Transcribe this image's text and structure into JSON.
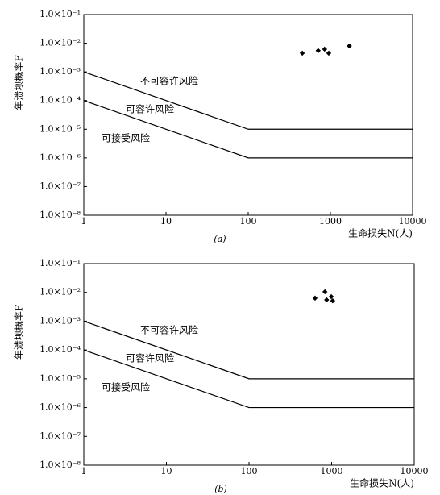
{
  "chart_data": [
    {
      "type": "scatter",
      "xscale": "log",
      "yscale": "log",
      "x_label": "生命损失N(人)",
      "y_label": "年溃坝概率F",
      "caption": "(a)",
      "xlim": [
        1,
        10000
      ],
      "ylim": [
        1e-08,
        0.1
      ],
      "xticks": [
        1,
        10,
        100,
        1000,
        10000
      ],
      "yticks": [
        {
          "value": 1e-08,
          "label": "1.0×10⁻⁸"
        },
        {
          "value": 1e-07,
          "label": "1.0×10⁻⁷"
        },
        {
          "value": 1e-06,
          "label": "1.0×10⁻⁶"
        },
        {
          "value": 1e-05,
          "label": "1.0×10⁻⁵"
        },
        {
          "value": 0.0001,
          "label": "1.0×10⁻⁴"
        },
        {
          "value": 0.001,
          "label": "1.0×10⁻³"
        },
        {
          "value": 0.01,
          "label": "1.0×10⁻²"
        },
        {
          "value": 0.1,
          "label": "1.0×10⁻¹"
        }
      ],
      "annotations": [
        "不可容许风险",
        "可容许风险",
        "可接受风险"
      ],
      "series": [
        {
          "type": "line",
          "color": "#000000",
          "x": [
            1,
            100,
            10000
          ],
          "values": [
            0.001,
            1e-05,
            1e-05
          ]
        },
        {
          "type": "line",
          "color": "#000000",
          "x": [
            1,
            100,
            10000
          ],
          "values": [
            0.0001,
            1e-06,
            1e-06
          ]
        },
        {
          "type": "scatter",
          "color": "#000000",
          "x": [
            455,
            710,
            850,
            955,
            1700
          ],
          "values": [
            0.0045,
            0.0055,
            0.0062,
            0.0045,
            0.008
          ]
        }
      ]
    },
    {
      "type": "scatter",
      "xscale": "log",
      "yscale": "log",
      "x_label": "生命损失N(人)",
      "y_label": "年溃坝概率F",
      "caption": "(b)",
      "xlim": [
        1,
        10000
      ],
      "ylim": [
        1e-08,
        0.1
      ],
      "xticks": [
        1,
        10,
        100,
        1000,
        10000
      ],
      "yticks": [
        {
          "value": 1e-08,
          "label": "1.0×10⁻⁸"
        },
        {
          "value": 1e-07,
          "label": "1.0×10⁻⁷"
        },
        {
          "value": 1e-06,
          "label": "1.0×10⁻⁶"
        },
        {
          "value": 1e-05,
          "label": "1.0×10⁻⁵"
        },
        {
          "value": 0.0001,
          "label": "1.0×10⁻⁴"
        },
        {
          "value": 0.001,
          "label": "1.0×10⁻³"
        },
        {
          "value": 0.01,
          "label": "1.0×10⁻²"
        },
        {
          "value": 0.1,
          "label": "1.0×10⁻¹"
        }
      ],
      "annotations": [
        "不可容许风险",
        "可容许风险",
        "可接受风险"
      ],
      "series": [
        {
          "type": "line",
          "color": "#000000",
          "x": [
            1,
            100,
            10000
          ],
          "values": [
            0.001,
            1e-05,
            1e-05
          ]
        },
        {
          "type": "line",
          "color": "#000000",
          "x": [
            1,
            100,
            10000
          ],
          "values": [
            0.0001,
            1e-06,
            1e-06
          ]
        },
        {
          "type": "scatter",
          "color": "#000000",
          "x": [
            630,
            830,
            870,
            990,
            1030
          ],
          "values": [
            0.0063,
            0.0105,
            0.0055,
            0.0071,
            0.0051
          ]
        }
      ]
    }
  ]
}
